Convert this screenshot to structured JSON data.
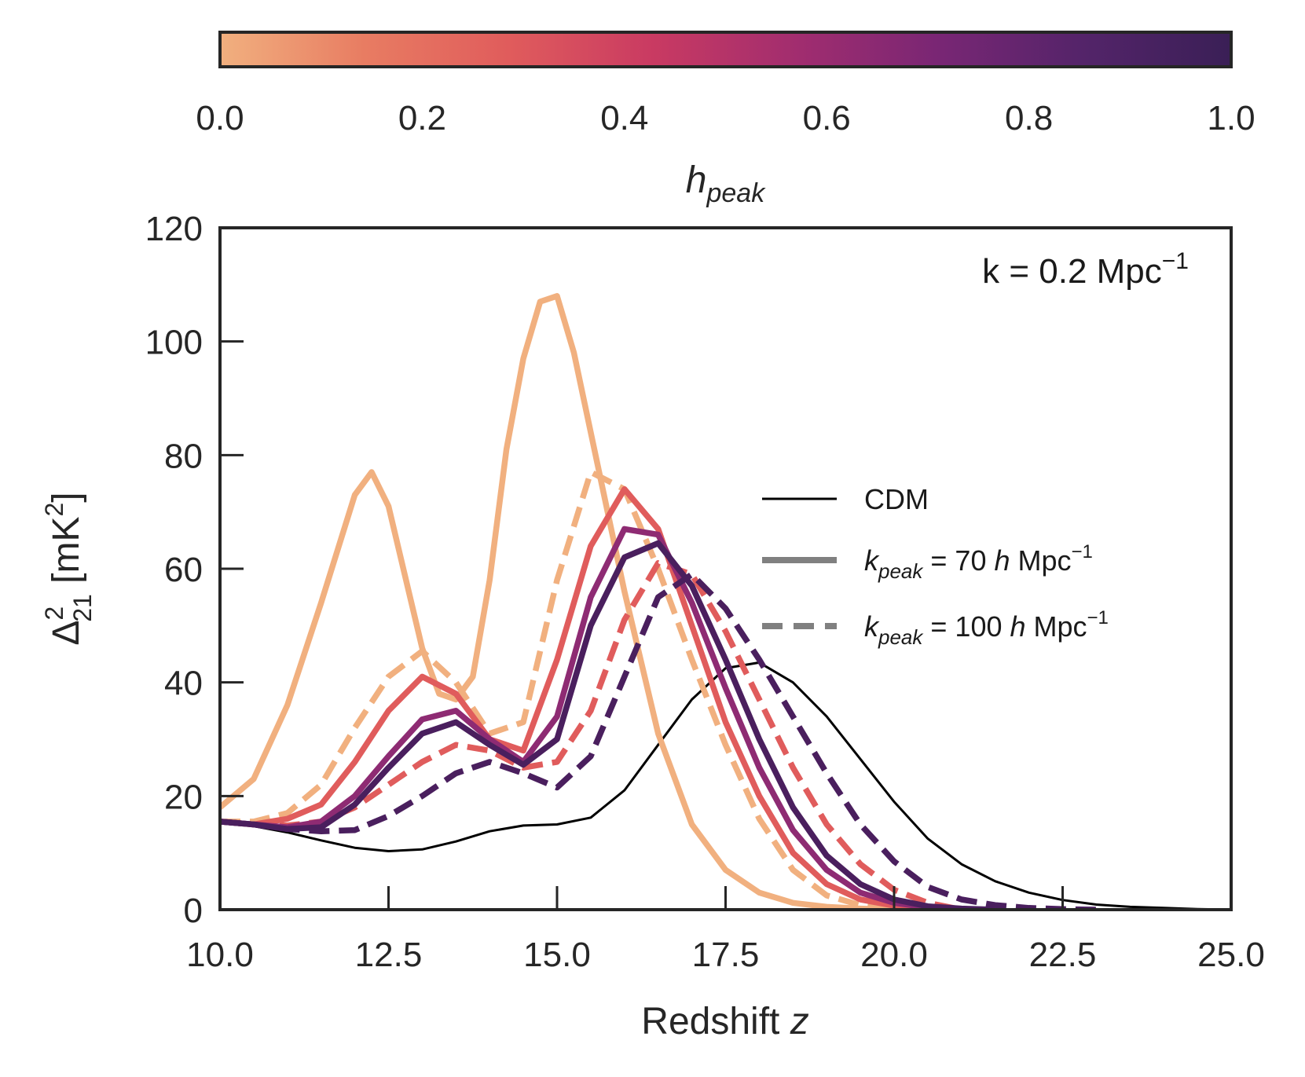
{
  "chart_data": {
    "type": "line",
    "xlabel_main": "Redshift ",
    "xlabel_var": "z",
    "ylabel_base": "Δ",
    "ylabel_sup": "2",
    "ylabel_sub": "21",
    "ylabel_unit_open": " [mK",
    "ylabel_unit_sup": "2",
    "ylabel_unit_close": "]",
    "xlim": [
      10.0,
      25.0
    ],
    "ylim": [
      0,
      120
    ],
    "xticks": [
      "10.0",
      "12.5",
      "15.0",
      "17.5",
      "20.0",
      "22.5",
      "25.0"
    ],
    "yticks": [
      "0",
      "20",
      "40",
      "60",
      "80",
      "100",
      "120"
    ],
    "annotation_main": "k = 0.2 Mpc",
    "annotation_sup": "−1",
    "colorbar": {
      "label_main": "h",
      "label_sub": "peak",
      "range": [
        0.0,
        1.0
      ],
      "ticks": [
        "0.0",
        "0.2",
        "0.4",
        "0.6",
        "0.8",
        "1.0"
      ],
      "colormap": [
        "#f1b07f",
        "#e87c62",
        "#e05c5c",
        "#c93a62",
        "#a12d6f",
        "#782674",
        "#532469",
        "#3a1f56"
      ]
    },
    "legend": {
      "cdm": "CDM",
      "k70": {
        "k": "k",
        "sub": "peak",
        "eq": " = 70 ",
        "h": "h",
        "unit": " Mpc",
        "sup": "−1"
      },
      "k100": {
        "k": "k",
        "sub": "peak",
        "eq": " = 100 ",
        "h": "h",
        "unit": " Mpc",
        "sup": "−1"
      }
    },
    "series": [
      {
        "name": "CDM",
        "style": "solid",
        "color": "#000000",
        "x": [
          10,
          10.5,
          11,
          11.5,
          12,
          12.5,
          13,
          13.5,
          14,
          14.5,
          15,
          15.5,
          16,
          16.5,
          17,
          17.5,
          18,
          18.5,
          19,
          19.5,
          20,
          20.5,
          21,
          21.5,
          22,
          22.5,
          23,
          23.5,
          24,
          24.5,
          25
        ],
        "y": [
          15.5,
          14.7,
          13.6,
          12.2,
          10.9,
          10.3,
          10.6,
          12.0,
          13.8,
          14.8,
          15.0,
          16.2,
          21,
          29,
          37,
          42.5,
          43.5,
          40,
          34,
          26.5,
          19,
          12.5,
          8,
          5,
          3,
          1.7,
          0.9,
          0.5,
          0.3,
          0.1,
          0
        ]
      },
      {
        "name": "h_peak=0.0, k_peak=70",
        "style": "solid",
        "color": "#f1b07f",
        "x": [
          10,
          10.5,
          11,
          11.5,
          12,
          12.25,
          12.5,
          13,
          13.25,
          13.5,
          13.75,
          14,
          14.25,
          14.5,
          14.75,
          15,
          15.25,
          15.5,
          16,
          16.5,
          17,
          17.5,
          18,
          18.5,
          19,
          19.5,
          20
        ],
        "y": [
          18,
          23,
          36,
          54,
          73,
          77,
          71,
          46,
          38,
          37,
          41,
          58,
          81,
          97,
          107,
          108,
          98,
          84,
          56,
          31,
          15,
          7,
          3,
          1.2,
          0.5,
          0.2,
          0
        ]
      },
      {
        "name": "h_peak=0.0, k_peak=100",
        "style": "dashed",
        "color": "#f1b07f",
        "x": [
          10,
          10.5,
          11,
          11.5,
          12,
          12.5,
          13,
          13.5,
          14,
          14.5,
          15,
          15.5,
          16,
          16.5,
          17,
          17.5,
          18,
          18.5,
          19,
          19.5,
          20
        ],
        "y": [
          15.5,
          15.5,
          17,
          22,
          32,
          41,
          45.5,
          40,
          31,
          33,
          58,
          77,
          74,
          60,
          44,
          29,
          16,
          7,
          2.5,
          0.8,
          0
        ]
      },
      {
        "name": "h_peak=0.3, k_peak=70",
        "style": "solid",
        "color": "#e05c5c",
        "x": [
          10,
          10.5,
          11,
          11.5,
          12,
          12.5,
          13,
          13.5,
          14,
          14.5,
          15,
          15.5,
          16,
          16.5,
          17,
          17.5,
          18,
          18.5,
          19,
          19.5,
          20,
          20.5,
          21
        ],
        "y": [
          15.5,
          15,
          16,
          18.5,
          26,
          35,
          41,
          38,
          30,
          28,
          44,
          64,
          74,
          67,
          50,
          33,
          20,
          10,
          4.5,
          1.8,
          0.7,
          0.2,
          0
        ]
      },
      {
        "name": "h_peak=0.3, k_peak=100",
        "style": "dashed",
        "color": "#e05c5c",
        "x": [
          10,
          10.5,
          11,
          11.5,
          12,
          12.5,
          13,
          13.5,
          14,
          14.5,
          15,
          15.5,
          16,
          16.5,
          17,
          17.5,
          18,
          18.5,
          19,
          19.5,
          20,
          20.5,
          21
        ],
        "y": [
          15.5,
          15,
          14.8,
          15.5,
          18,
          22,
          26,
          29,
          28,
          25,
          26,
          35,
          51,
          61,
          59,
          49,
          37,
          25,
          15,
          8,
          3.5,
          1.2,
          0
        ]
      },
      {
        "name": "h_peak=0.65, k_peak=70",
        "style": "solid",
        "color": "#8e2b73",
        "x": [
          10,
          10.5,
          11,
          11.5,
          12,
          12.5,
          13,
          13.5,
          14,
          14.5,
          15,
          15.5,
          16,
          16.5,
          17,
          17.5,
          18,
          18.5,
          19,
          19.5,
          20,
          20.5,
          21,
          21.5
        ],
        "y": [
          15.5,
          15,
          14.5,
          15.5,
          20,
          27,
          33.5,
          35,
          30,
          26,
          34,
          55,
          67,
          66,
          54,
          39,
          25,
          14,
          7,
          3,
          1.2,
          0.4,
          0.1,
          0
        ]
      },
      {
        "name": "h_peak=1.0, k_peak=70",
        "style": "solid",
        "color": "#4a1f5e",
        "x": [
          10,
          10.5,
          11,
          11.5,
          12,
          12.5,
          13,
          13.5,
          14,
          14.5,
          15,
          15.5,
          16,
          16.5,
          17,
          17.5,
          18,
          18.5,
          19,
          19.5,
          20,
          20.5,
          21,
          21.5
        ],
        "y": [
          15.5,
          15,
          14.2,
          14.5,
          18.5,
          25,
          31,
          33,
          29,
          25.5,
          30,
          50,
          62,
          64.5,
          57,
          44,
          30,
          18,
          9.5,
          4.5,
          1.8,
          0.6,
          0.2,
          0
        ]
      },
      {
        "name": "h_peak=1.0, k_peak=100",
        "style": "dashed",
        "color": "#4a1f5e",
        "x": [
          10,
          10.5,
          11,
          11.5,
          12,
          12.5,
          13,
          13.5,
          14,
          14.5,
          15,
          15.5,
          16,
          16.5,
          17,
          17.5,
          18,
          18.5,
          19,
          19.5,
          20,
          20.5,
          21,
          21.5,
          22,
          22.5,
          23
        ],
        "y": [
          15.5,
          15,
          14.2,
          13.8,
          14,
          16.5,
          20,
          24,
          26,
          24,
          21.5,
          27,
          41,
          55,
          59,
          53,
          44,
          34,
          24,
          15,
          8.5,
          4,
          1.8,
          0.8,
          0.3,
          0.1,
          0
        ]
      }
    ]
  }
}
